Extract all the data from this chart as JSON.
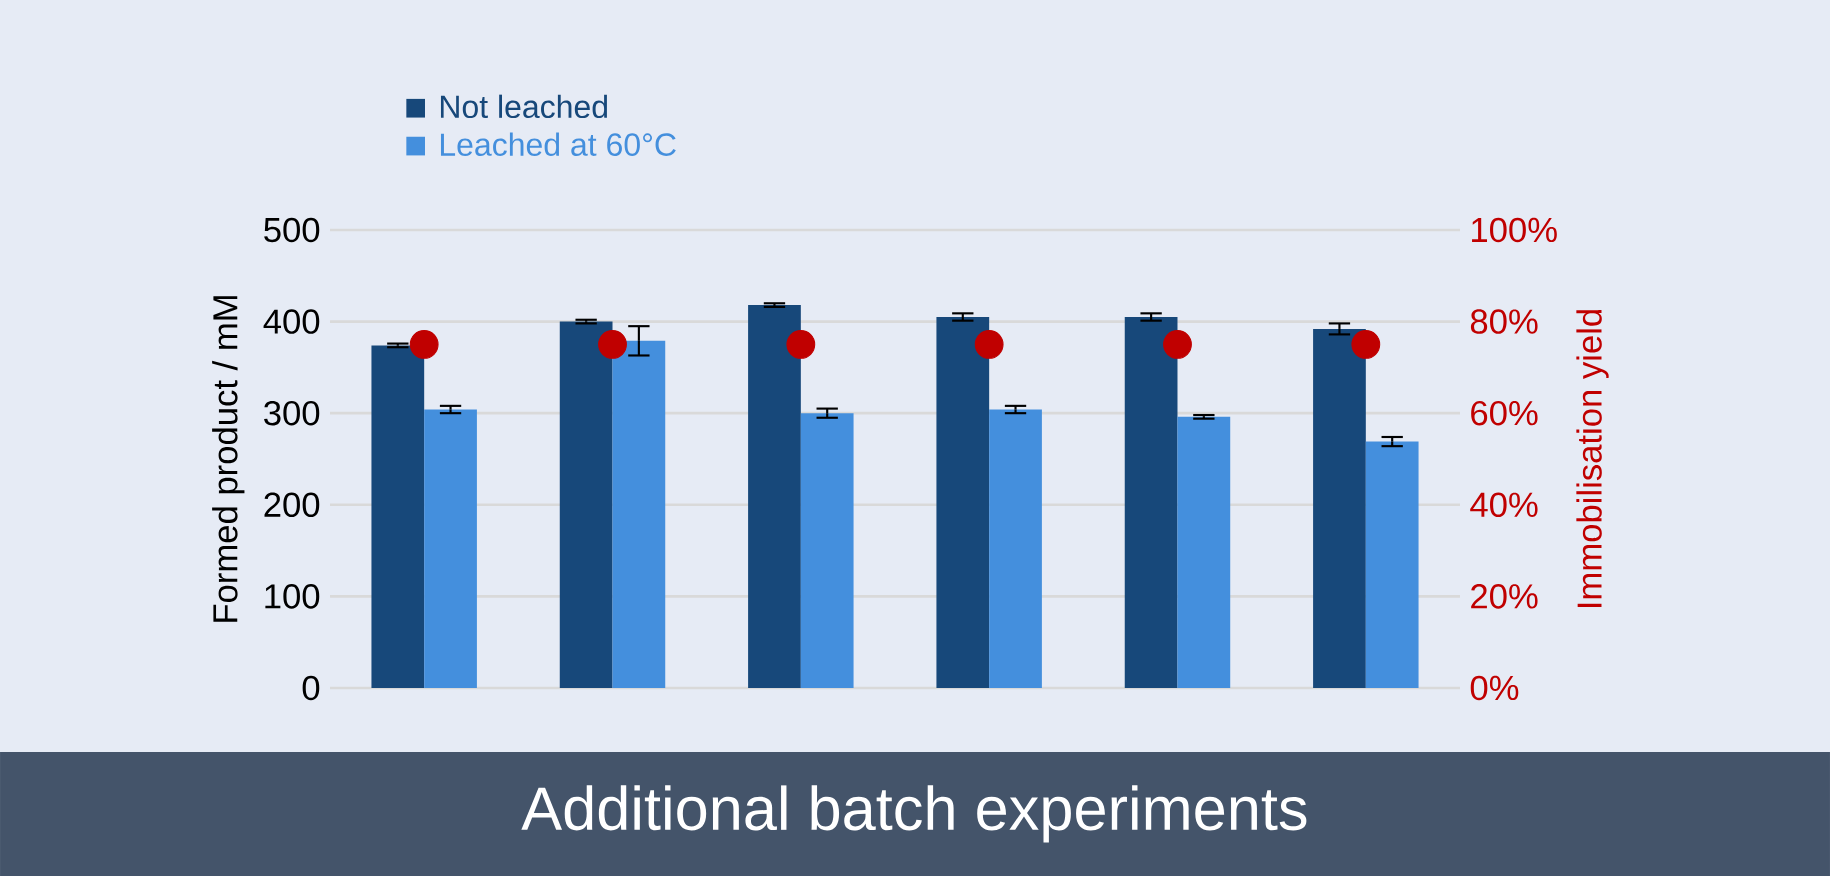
{
  "chart_data": {
    "type": "bar",
    "title": "Additional batch experiments",
    "ylabel": "Formed product / mM",
    "y2label": "Immobilisation yield",
    "categories": [
      null,
      null,
      null,
      null,
      null,
      null
    ],
    "series": [
      {
        "name": "Not leached",
        "color": "#17487a",
        "values": [
          374,
          400,
          418,
          405,
          405,
          392
        ],
        "errors": [
          2,
          2,
          2,
          4,
          4,
          6
        ]
      },
      {
        "name": "Leached at 60°C",
        "color": "#448fdd",
        "values": [
          304,
          379,
          300,
          304,
          296,
          269
        ],
        "errors": [
          4,
          16,
          5,
          4,
          2,
          5
        ]
      },
      {
        "type": "scatter",
        "axis": "y2",
        "color": "#c00000",
        "marker": "circle",
        "values": [
          75,
          75,
          75,
          75,
          75,
          75
        ]
      }
    ],
    "ylim": [
      0,
      500
    ],
    "yticks": [
      0,
      100,
      200,
      300,
      400,
      500
    ],
    "y2lim": [
      0,
      100
    ],
    "y2ticks": [
      {
        "value": 0,
        "label": "0%"
      },
      {
        "value": 20,
        "label": "20%"
      },
      {
        "value": 40,
        "label": "40%"
      },
      {
        "value": 60,
        "label": "60%"
      },
      {
        "value": 80,
        "label": "80%"
      },
      {
        "value": 100,
        "label": "100%"
      }
    ],
    "grid": "y",
    "legend": "top left"
  }
}
